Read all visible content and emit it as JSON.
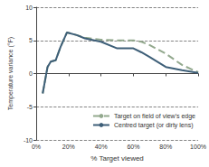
{
  "chart_data": {
    "type": "line",
    "x_label": "% Target viewed",
    "y_label": "Temperature variance (°F)",
    "x": [
      4,
      7,
      9,
      12,
      15,
      19,
      25,
      30,
      40,
      50,
      60,
      65,
      70,
      80,
      90,
      100
    ],
    "series": [
      {
        "name": "Target on field of view's edge",
        "color": "#93a98e",
        "line_style": "dashed",
        "values": [
          -3,
          1,
          1.8,
          2,
          4,
          6.2,
          5.8,
          5.4,
          5.1,
          5,
          5,
          4.8,
          4.3,
          3,
          1.3,
          0.2
        ]
      },
      {
        "name": "Centred target (or dirty lens)",
        "color": "#3e5f78",
        "line_style": "solid",
        "values": [
          -3,
          1,
          1.8,
          2,
          4,
          6.2,
          5.8,
          5.3,
          4.8,
          3.8,
          3.8,
          3.2,
          2.5,
          1,
          0.5,
          0.1
        ]
      }
    ],
    "xlim": [
      0,
      100
    ],
    "xticks": [
      {
        "value": 0,
        "label": "0%"
      },
      {
        "value": 20,
        "label": "20%"
      },
      {
        "value": 40,
        "label": "40%"
      },
      {
        "value": 60,
        "label": "60%"
      },
      {
        "value": 80,
        "label": "80%"
      },
      {
        "value": 100,
        "label": "100%"
      }
    ],
    "ylim": [
      -10,
      10
    ],
    "yticks": [
      -10,
      -5,
      0,
      5,
      10
    ],
    "grid": true,
    "legend": "bottom-right"
  }
}
